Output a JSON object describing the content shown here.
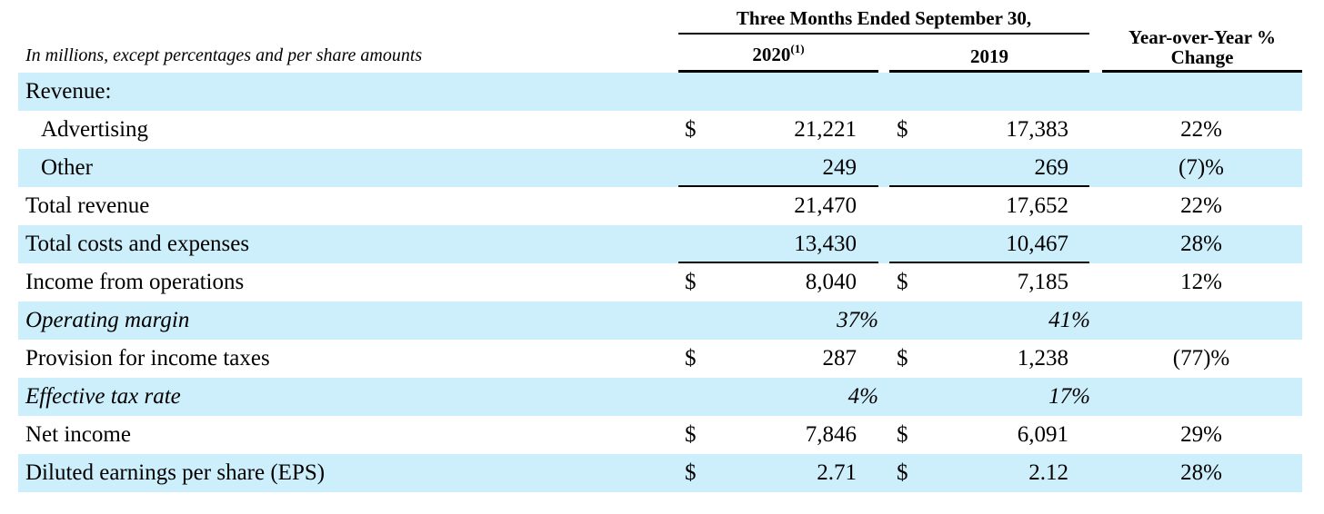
{
  "header": {
    "period": "Three Months Ended September 30,",
    "col_2020": "2020",
    "col_2020_note": "(1)",
    "col_2019": "2019",
    "change_line1": "Year-over-Year %",
    "change_line2": "Change",
    "units_note": "In millions, except percentages and per share amounts"
  },
  "rows": [
    {
      "label": "Revenue:"
    },
    {
      "label": "Advertising",
      "cur_2020": "$",
      "val_2020": "21,221",
      "cur_2019": "$",
      "val_2019": "17,383",
      "change": "22%"
    },
    {
      "label": "Other",
      "val_2020": "249",
      "val_2019": "269",
      "change": "(7)%"
    },
    {
      "label": "Total revenue",
      "val_2020": "21,470",
      "val_2019": "17,652",
      "change": "22%"
    },
    {
      "label": "Total costs and expenses",
      "val_2020": "13,430",
      "val_2019": "10,467",
      "change": "28%"
    },
    {
      "label": "Income from operations",
      "cur_2020": "$",
      "val_2020": "8,040",
      "cur_2019": "$",
      "val_2019": "7,185",
      "change": "12%"
    },
    {
      "label": "Operating margin",
      "val_2020": "37%",
      "val_2019": "41%"
    },
    {
      "label": "Provision for income taxes",
      "cur_2020": "$",
      "val_2020": "287",
      "cur_2019": "$",
      "val_2019": "1,238",
      "change": "(77)%"
    },
    {
      "label": "Effective tax rate",
      "val_2020": "4%",
      "val_2019": "17%"
    },
    {
      "label": "Net income",
      "cur_2020": "$",
      "val_2020": "7,846",
      "cur_2019": "$",
      "val_2019": "6,091",
      "change": "29%"
    },
    {
      "label": "Diluted earnings per share (EPS)",
      "cur_2020": "$",
      "val_2020": "2.71",
      "cur_2019": "$",
      "val_2019": "2.12",
      "change": "28%"
    }
  ]
}
